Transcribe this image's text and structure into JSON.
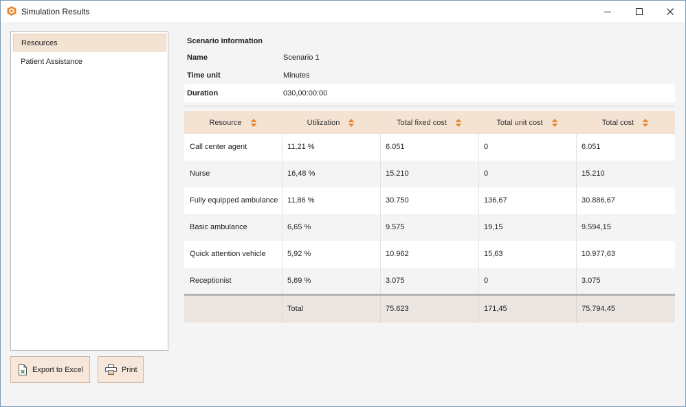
{
  "window": {
    "title": "Simulation Results"
  },
  "sidebar": {
    "items": [
      {
        "label": "Resources",
        "selected": true
      },
      {
        "label": "Patient Assistance",
        "selected": false
      }
    ]
  },
  "buttons": {
    "export_label": "Export to Excel",
    "print_label": "Print"
  },
  "scenario": {
    "heading": "Scenario information",
    "rows": [
      {
        "label": "Name",
        "value": "Scenario 1"
      },
      {
        "label": "Time unit",
        "value": "Minutes"
      },
      {
        "label": "Duration",
        "value": "030,00:00:00"
      }
    ]
  },
  "table": {
    "columns": [
      "Resource",
      "Utilization",
      "Total fixed cost",
      "Total unit cost",
      "Total cost"
    ],
    "rows": [
      [
        "Call center agent",
        "11,21 %",
        "6.051",
        "0",
        "6.051"
      ],
      [
        "Nurse",
        "16,48 %",
        "15.210",
        "0",
        "15.210"
      ],
      [
        "Fully equipped ambulance",
        "11,86 %",
        "30.750",
        "136,67",
        "30.886,67"
      ],
      [
        "Basic ambulance",
        "6,65 %",
        "9.575",
        "19,15",
        "9.594,15"
      ],
      [
        "Quick attention vehicle",
        "5,92 %",
        "10.962",
        "15,63",
        "10.977,63"
      ],
      [
        "Receptionist",
        "5,69 %",
        "3.075",
        "0",
        "3.075"
      ]
    ],
    "total": [
      "",
      "Total",
      "75.623",
      "171,45",
      "75.794,45"
    ]
  },
  "colors": {
    "accent": "#f4e2d3",
    "sort_icon": "#e8882e",
    "app_icon": "#e8882e"
  },
  "icons": {
    "app": "app-logo-icon",
    "excel": "excel-file-icon",
    "print": "printer-icon",
    "sort": "sort-arrows-icon"
  }
}
